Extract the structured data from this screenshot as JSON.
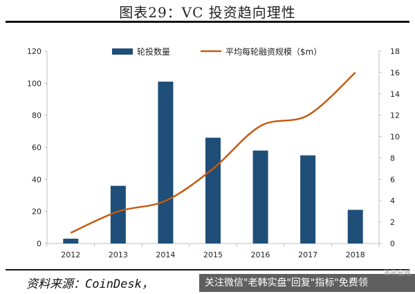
{
  "figure_title": "图表29：VC 投资趋向理性",
  "source_text": "资料来源：CoinDesk，",
  "watermark": {
    "banner": "关注微信\"老韩实盘\"回复\"指标\"免费领",
    "account_id": "泽平宏观"
  },
  "chart_data": {
    "type": "bar+line",
    "categories": [
      "2012",
      "2013",
      "2014",
      "2015",
      "2016",
      "2017",
      "2018"
    ],
    "series": [
      {
        "name": "轮投数量",
        "type": "bar",
        "axis": "left",
        "values": [
          3,
          36,
          101,
          66,
          58,
          55,
          21
        ],
        "color": "#1F4E79"
      },
      {
        "name": "平均每轮融资规模（$m）",
        "type": "line",
        "axis": "right",
        "values": [
          1,
          3,
          4,
          7,
          11,
          12,
          16
        ],
        "color": "#C55A11"
      }
    ],
    "y_left": {
      "range": [
        0,
        120
      ],
      "ticks": [
        "0",
        "20",
        "40",
        "60",
        "80",
        "100",
        "120"
      ]
    },
    "y_right": {
      "range": [
        0,
        18
      ],
      "ticks": [
        "0",
        "2",
        "4",
        "6",
        "8",
        "10",
        "12",
        "14",
        "16",
        "18"
      ]
    },
    "legend_position": "top-center",
    "grid": false
  }
}
